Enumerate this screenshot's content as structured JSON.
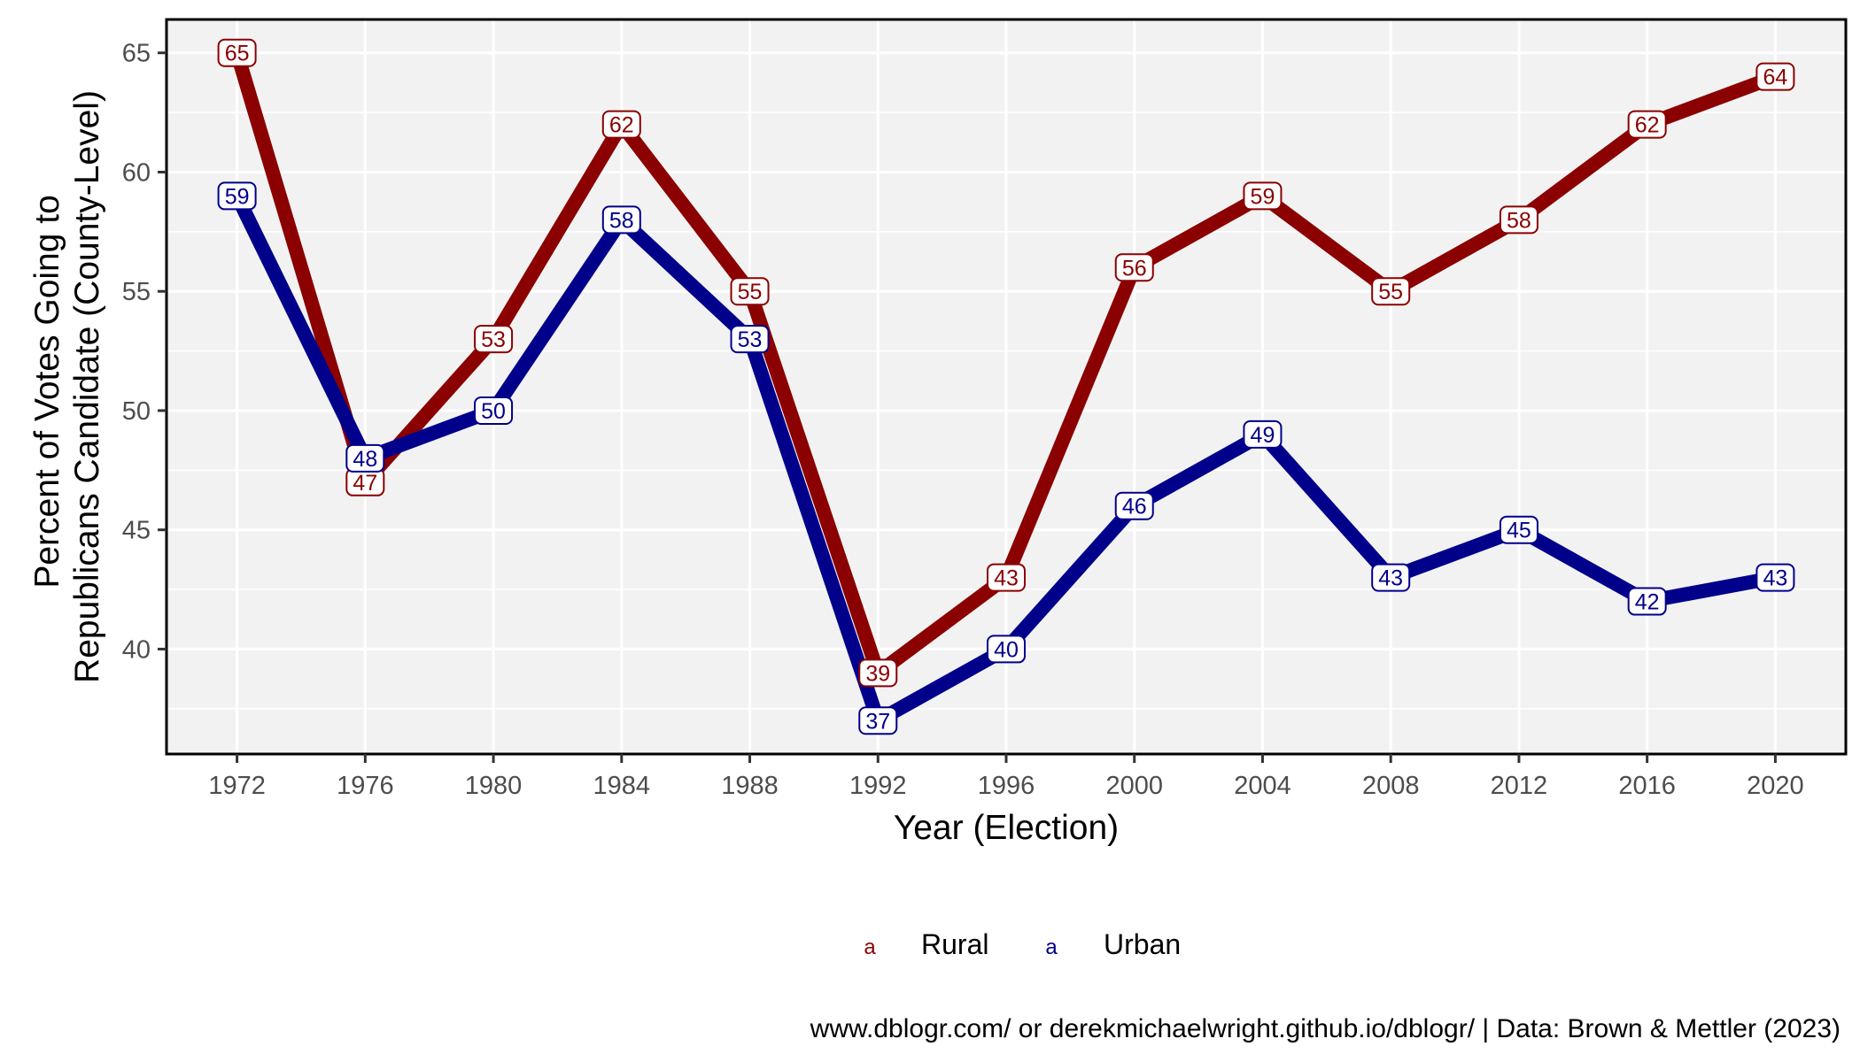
{
  "chart_data": {
    "type": "line",
    "xlabel": "Year (Election)",
    "ylabel": [
      "Percent of Votes Going to",
      "Republicans Candidate (County-Level)"
    ],
    "x": [
      1972,
      1976,
      1980,
      1984,
      1988,
      1992,
      1996,
      2000,
      2004,
      2008,
      2012,
      2016,
      2020
    ],
    "xlim": [
      1969.8,
      2022.2
    ],
    "ylim": [
      35.6,
      66.4
    ],
    "yticks": [
      40,
      45,
      50,
      55,
      60,
      65
    ],
    "grid": true,
    "legend_position": "bottom",
    "series": [
      {
        "name": "Rural",
        "color": "#8b0000",
        "values": [
          65,
          47,
          53,
          62,
          55,
          39,
          43,
          56,
          59,
          55,
          58,
          62,
          64
        ]
      },
      {
        "name": "Urban",
        "color": "#00008b",
        "values": [
          59,
          48,
          50,
          58,
          53,
          37,
          40,
          46,
          49,
          43,
          45,
          42,
          43
        ]
      }
    ],
    "legend_key_glyph": "a",
    "caption": "www.dblogr.com/ or derekmichaelwright.github.io/dblogr/ | Data: Brown & Mettler (2023)"
  }
}
